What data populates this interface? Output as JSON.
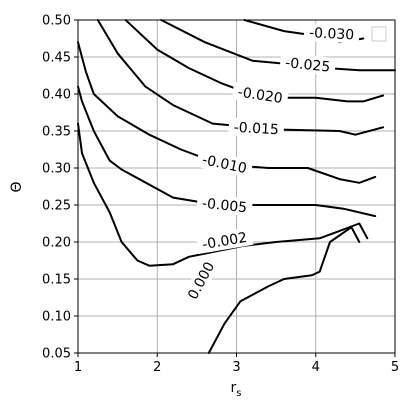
{
  "chart_data": {
    "type": "line",
    "xlabel_main": "r",
    "xlabel_sub": "s",
    "ylabel": "Θ",
    "xlim": [
      1,
      5
    ],
    "ylim": [
      0.05,
      0.5
    ],
    "grid": true,
    "legend": "top-right (empty)",
    "x_ticks": [
      "1",
      "2",
      "3",
      "4",
      "5"
    ],
    "y_ticks": [
      "0.05",
      "0.10",
      "0.15",
      "0.20",
      "0.25",
      "0.30",
      "0.35",
      "0.40",
      "0.45",
      "0.50"
    ],
    "series": [
      {
        "name": "0.000",
        "points": [
          [
            2.65,
            0.05
          ],
          [
            2.75,
            0.07
          ],
          [
            2.85,
            0.09
          ],
          [
            3.05,
            0.12
          ],
          [
            3.4,
            0.14
          ],
          [
            3.6,
            0.15
          ],
          [
            3.95,
            0.155
          ],
          [
            4.05,
            0.16
          ],
          [
            4.18,
            0.2
          ],
          [
            4.45,
            0.22
          ],
          [
            4.55,
            0.2
          ]
        ],
        "label": {
          "x": 2.55,
          "y": 0.148,
          "text": "0.000"
        }
      },
      {
        "name": "-0.002",
        "points": [
          [
            1.0,
            0.36
          ],
          [
            1.05,
            0.32
          ],
          [
            1.2,
            0.28
          ],
          [
            1.4,
            0.24
          ],
          [
            1.55,
            0.2
          ],
          [
            1.75,
            0.175
          ],
          [
            1.9,
            0.168
          ],
          [
            2.2,
            0.17
          ],
          [
            2.4,
            0.18
          ],
          [
            3.1,
            0.195
          ],
          [
            3.5,
            0.2
          ],
          [
            4.05,
            0.205
          ],
          [
            4.3,
            0.215
          ],
          [
            4.55,
            0.225
          ],
          [
            4.65,
            0.205
          ]
        ],
        "label": {
          "x": 2.85,
          "y": 0.202,
          "text": "-0.002"
        }
      },
      {
        "name": "-0.005",
        "points": [
          [
            1.0,
            0.41
          ],
          [
            1.05,
            0.39
          ],
          [
            1.2,
            0.35
          ],
          [
            1.4,
            0.31
          ],
          [
            1.55,
            0.298
          ],
          [
            2.2,
            0.26
          ],
          [
            2.65,
            0.252
          ],
          [
            3.1,
            0.25
          ],
          [
            4.0,
            0.25
          ],
          [
            4.35,
            0.245
          ],
          [
            4.75,
            0.235
          ]
        ],
        "label": {
          "x": 2.85,
          "y": 0.25,
          "text": "-0.005"
        }
      },
      {
        "name": "-0.010",
        "points": [
          [
            1.0,
            0.47
          ],
          [
            1.1,
            0.43
          ],
          [
            1.2,
            0.4
          ],
          [
            1.5,
            0.37
          ],
          [
            1.9,
            0.345
          ],
          [
            2.3,
            0.325
          ],
          [
            2.8,
            0.305
          ],
          [
            3.4,
            0.3
          ],
          [
            3.9,
            0.3
          ],
          [
            4.3,
            0.285
          ],
          [
            4.55,
            0.28
          ],
          [
            4.75,
            0.288
          ]
        ],
        "label": {
          "x": 2.85,
          "y": 0.306,
          "text": "-0.010"
        }
      },
      {
        "name": "-0.015",
        "points": [
          [
            1.25,
            0.5
          ],
          [
            1.5,
            0.455
          ],
          [
            1.85,
            0.41
          ],
          [
            2.2,
            0.385
          ],
          [
            2.7,
            0.36
          ],
          [
            3.5,
            0.352
          ],
          [
            4.3,
            0.35
          ],
          [
            4.5,
            0.345
          ],
          [
            4.85,
            0.355
          ]
        ],
        "label": {
          "x": 3.25,
          "y": 0.354,
          "text": "-0.015"
        }
      },
      {
        "name": "-0.020",
        "points": [
          [
            1.6,
            0.5
          ],
          [
            2.0,
            0.46
          ],
          [
            2.4,
            0.435
          ],
          [
            2.8,
            0.415
          ],
          [
            3.3,
            0.395
          ],
          [
            4.0,
            0.395
          ],
          [
            4.4,
            0.39
          ],
          [
            4.6,
            0.39
          ],
          [
            4.85,
            0.398
          ]
        ],
        "label": {
          "x": 3.3,
          "y": 0.399,
          "text": "-0.020"
        }
      },
      {
        "name": "-0.025",
        "points": [
          [
            2.05,
            0.5
          ],
          [
            2.6,
            0.47
          ],
          [
            3.2,
            0.445
          ],
          [
            3.7,
            0.44
          ],
          [
            4.15,
            0.435
          ],
          [
            4.55,
            0.432
          ],
          [
            5.0,
            0.432
          ]
        ],
        "label": {
          "x": 3.9,
          "y": 0.44,
          "text": "-0.025"
        }
      },
      {
        "name": "-0.030",
        "points": [
          [
            3.1,
            0.5
          ],
          [
            3.6,
            0.485
          ],
          [
            4.05,
            0.478
          ],
          [
            4.3,
            0.47
          ],
          [
            4.6,
            0.475
          ]
        ],
        "label": {
          "x": 4.2,
          "y": 0.482,
          "text": "-0.030"
        }
      }
    ]
  }
}
